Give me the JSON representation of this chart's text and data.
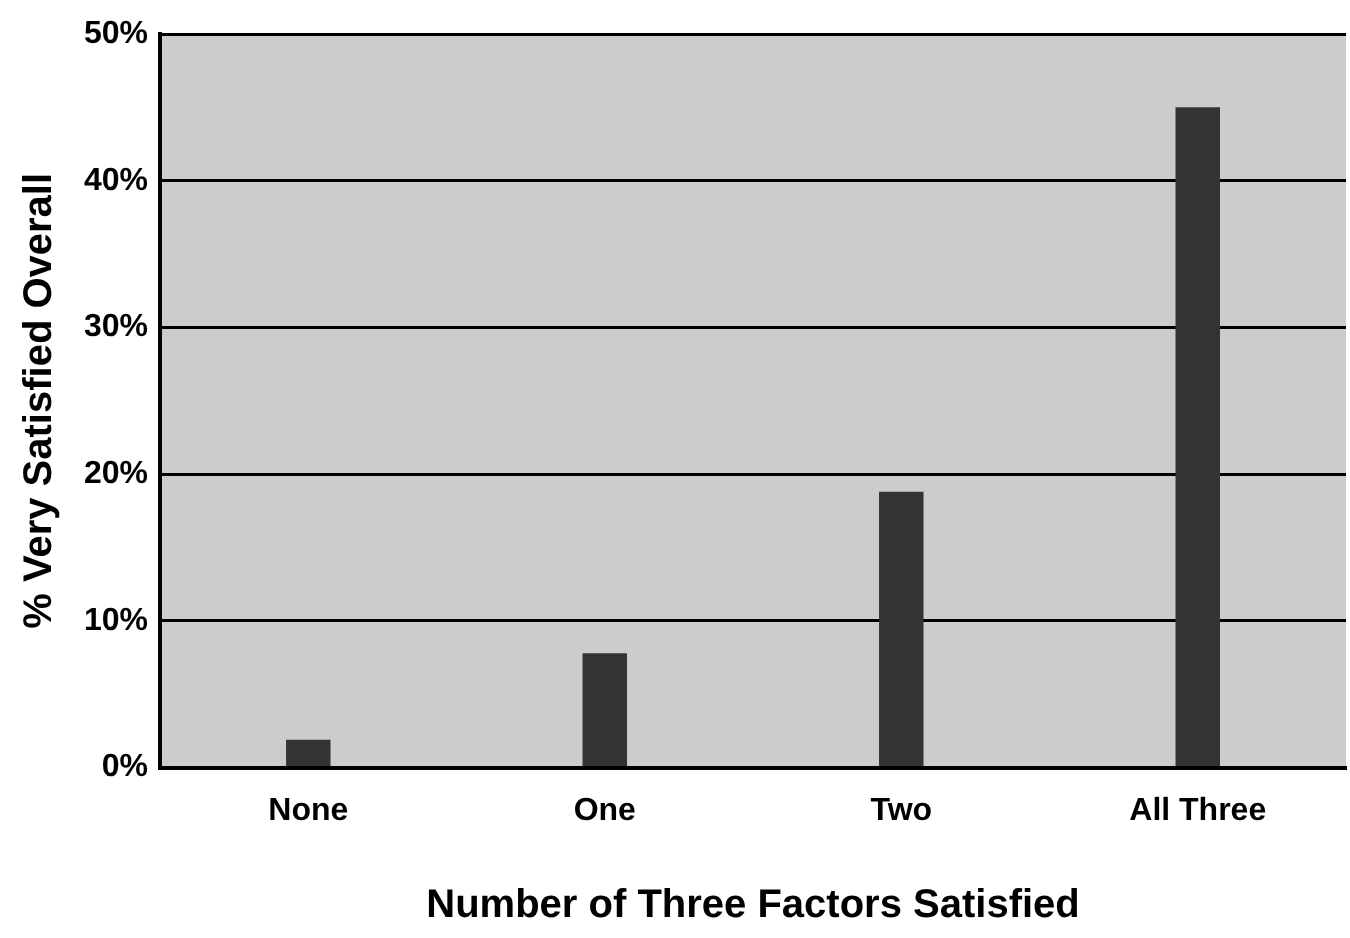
{
  "chart_data": {
    "type": "bar",
    "xlabel": "Number of Three Factors Satisfied",
    "ylabel": "% Very Satisfied Overall",
    "categories": [
      "None",
      "One",
      "Two",
      "All Three"
    ],
    "values": [
      1.9,
      7.8,
      18.8,
      45
    ],
    "color": "#333333",
    "ylim": [
      0,
      50
    ],
    "yticks": [
      {
        "value": 0,
        "label": "0%"
      },
      {
        "value": 10,
        "label": "10%"
      },
      {
        "value": 20,
        "label": "20%"
      },
      {
        "value": 30,
        "label": "30%"
      },
      {
        "value": 40,
        "label": "40%"
      },
      {
        "value": 50,
        "label": "50%"
      }
    ],
    "grid": "y"
  }
}
